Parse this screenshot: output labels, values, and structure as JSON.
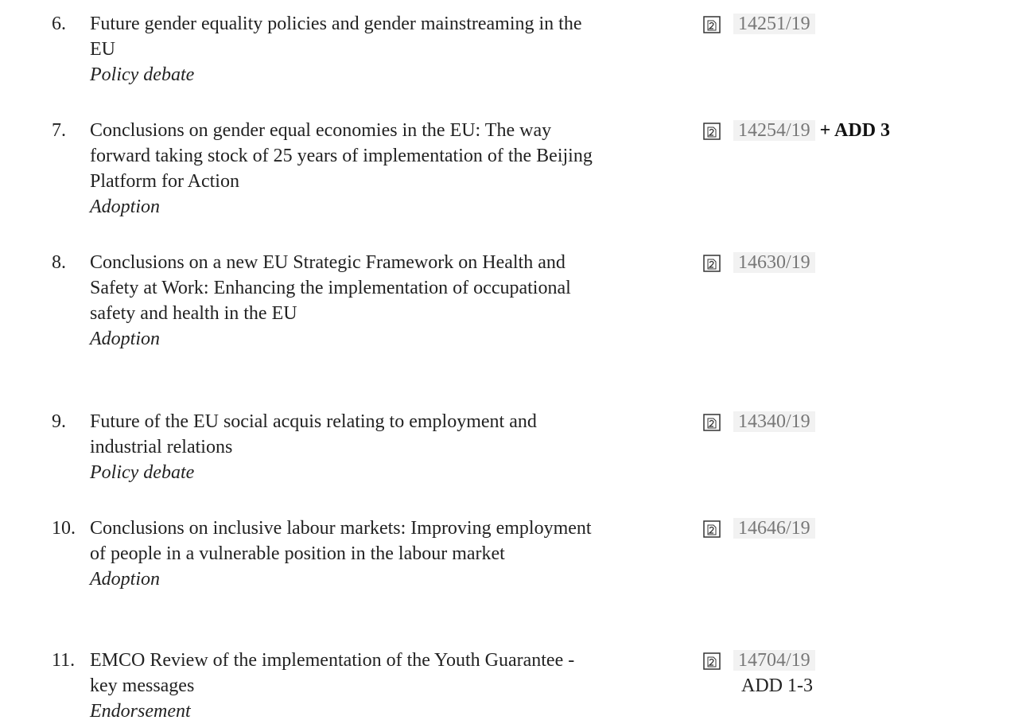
{
  "items": [
    {
      "number": "6.",
      "title_lines": [
        "Future gender equality policies and gender mainstreaming in the",
        "EU"
      ],
      "action": "Policy debate",
      "ref": "14251/19"
    },
    {
      "number": "7.",
      "title_lines": [
        "Conclusions on gender equal economies in the EU: The way",
        "forward taking stock of 25 years of implementation of the Beijing",
        "Platform for Action"
      ],
      "action": "Adoption",
      "ref": "14254/19",
      "addendum": "+ ADD 3"
    },
    {
      "number": "8.",
      "title_lines": [
        "Conclusions on a new EU Strategic Framework on Health and",
        "Safety at Work: Enhancing the implementation of occupational",
        "safety and health in the EU"
      ],
      "action": "Adoption",
      "ref": "14630/19"
    },
    {
      "number": "9.",
      "title_lines": [
        "Future of the EU social acquis relating to employment and",
        "industrial relations"
      ],
      "action": "Policy debate",
      "ref": "14340/19"
    },
    {
      "number": "10.",
      "title_lines": [
        "Conclusions on inclusive labour markets: Improving employment",
        "of people in a vulnerable position in the labour market"
      ],
      "action": "Adoption",
      "ref": "14646/19"
    },
    {
      "number": "11.",
      "title_lines": [
        "EMCO Review of the implementation of the Youth Guarantee -",
        "key messages"
      ],
      "action": "Endorsement",
      "ref": "14704/19",
      "addendum": "ADD 1-3"
    }
  ]
}
